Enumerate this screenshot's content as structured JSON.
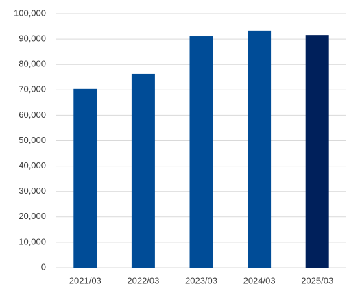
{
  "chart_data": {
    "type": "bar",
    "categories": [
      "2021/03",
      "2022/03",
      "2023/03",
      "2024/03",
      "2025/03"
    ],
    "values": [
      70400,
      76300,
      91100,
      93300,
      91600
    ],
    "colors": [
      "#004c97",
      "#004c97",
      "#004c97",
      "#004c97",
      "#00205b"
    ],
    "ylim": [
      0,
      100000
    ],
    "yticks": [
      0,
      {
        "value": 10000,
        "label": "10,000"
      },
      {
        "value": 20000,
        "label": "20,000"
      },
      {
        "value": 30000,
        "label": "30,000"
      },
      {
        "value": 40000,
        "label": "40,000"
      },
      {
        "value": 50000,
        "label": "50,000"
      },
      {
        "value": 60000,
        "label": "60,000"
      },
      {
        "value": 70000,
        "label": "70,000"
      },
      {
        "value": 80000,
        "label": "80,000"
      },
      {
        "value": 90000,
        "label": "90,000"
      },
      {
        "value": 100000,
        "label": "100,000"
      }
    ],
    "grid": true
  }
}
